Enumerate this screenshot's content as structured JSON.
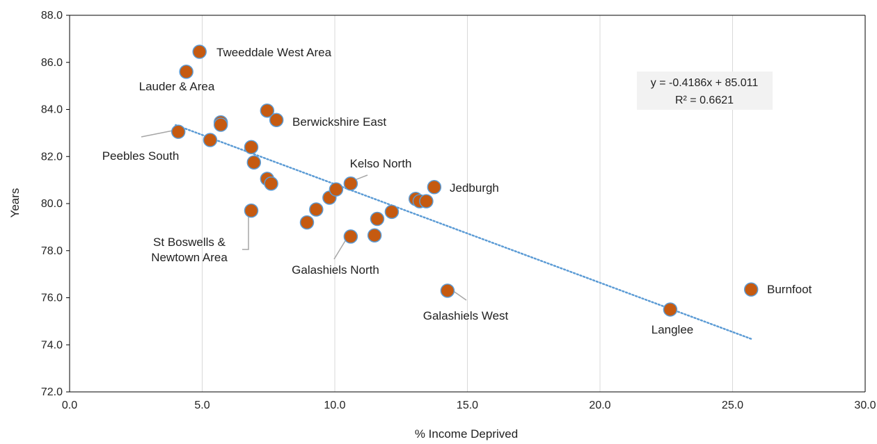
{
  "chart_data": {
    "type": "scatter",
    "title": "",
    "xlabel": "% Income Deprived",
    "ylabel": "Years",
    "xlim": [
      0,
      30
    ],
    "ylim": [
      72,
      88
    ],
    "x_ticks": [
      "0.0",
      "5.0",
      "10.0",
      "15.0",
      "20.0",
      "25.0",
      "30.0"
    ],
    "y_ticks": [
      "72.0",
      "74.0",
      "76.0",
      "78.0",
      "80.0",
      "82.0",
      "84.0",
      "86.0",
      "88.0"
    ],
    "grid": "vertical",
    "marker_color": "#C55A11",
    "marker_edge_color": "#5B9BD5",
    "trendline_color": "#5B9BD5",
    "trendline": {
      "slope": -0.4186,
      "intercept": 85.011,
      "x_range": [
        4.0,
        25.7
      ]
    },
    "equation": "y = -0.4186x + 85.011",
    "r_squared": "R² = 0.6621",
    "points": [
      {
        "x": 4.9,
        "y": 86.45
      },
      {
        "x": 4.4,
        "y": 85.6
      },
      {
        "x": 4.1,
        "y": 83.05
      },
      {
        "x": 5.7,
        "y": 83.45
      },
      {
        "x": 5.7,
        "y": 83.35
      },
      {
        "x": 5.3,
        "y": 82.7
      },
      {
        "x": 7.45,
        "y": 83.95
      },
      {
        "x": 7.8,
        "y": 83.55
      },
      {
        "x": 6.85,
        "y": 82.4
      },
      {
        "x": 6.95,
        "y": 81.75
      },
      {
        "x": 7.45,
        "y": 81.05
      },
      {
        "x": 7.6,
        "y": 80.85
      },
      {
        "x": 6.85,
        "y": 79.7
      },
      {
        "x": 9.8,
        "y": 80.25
      },
      {
        "x": 10.05,
        "y": 80.6
      },
      {
        "x": 10.6,
        "y": 80.85
      },
      {
        "x": 9.3,
        "y": 79.75
      },
      {
        "x": 8.95,
        "y": 79.2
      },
      {
        "x": 10.6,
        "y": 78.6
      },
      {
        "x": 11.5,
        "y": 78.65
      },
      {
        "x": 11.6,
        "y": 79.35
      },
      {
        "x": 12.15,
        "y": 79.65
      },
      {
        "x": 13.05,
        "y": 80.2
      },
      {
        "x": 13.2,
        "y": 80.1
      },
      {
        "x": 13.45,
        "y": 80.1
      },
      {
        "x": 13.75,
        "y": 80.7
      },
      {
        "x": 14.25,
        "y": 76.3
      },
      {
        "x": 22.65,
        "y": 75.5
      },
      {
        "x": 25.7,
        "y": 76.35
      }
    ],
    "annotations": [
      {
        "lines": [
          "Tweeddale West Area"
        ]
      },
      {
        "lines": [
          "Lauder & Area"
        ]
      },
      {
        "lines": [
          "Berwickshire East"
        ]
      },
      {
        "lines": [
          "Peebles South"
        ]
      },
      {
        "lines": [
          "Kelso North"
        ]
      },
      {
        "lines": [
          "Jedburgh"
        ]
      },
      {
        "lines": [
          "St Boswells &",
          "Newtown Area"
        ]
      },
      {
        "lines": [
          "Galashiels North"
        ]
      },
      {
        "lines": [
          "Galashiels West"
        ]
      },
      {
        "lines": [
          "Burnfoot"
        ]
      },
      {
        "lines": [
          "Langlee"
        ]
      }
    ]
  }
}
